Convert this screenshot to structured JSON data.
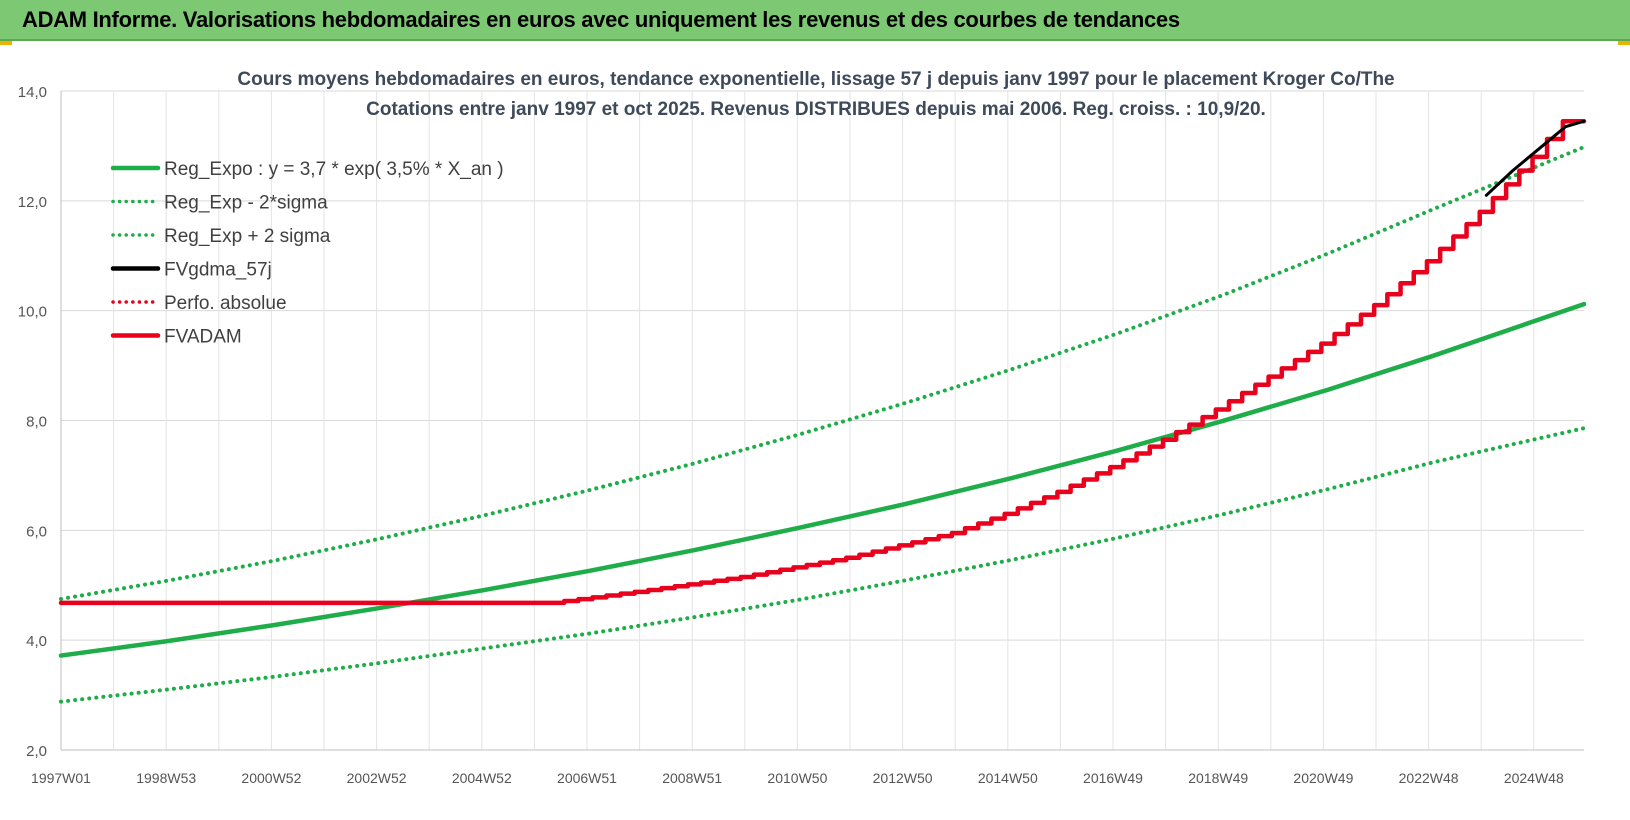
{
  "header": {
    "title": "ADAM Informe. Valorisations hebdomadaires en euros avec uniquement les revenus et des courbes de tendances"
  },
  "chart_data": {
    "type": "line",
    "title": "Cours moyens hebdomadaires en euros, tendance exponentielle, lissage 57 j depuis janv 1997 pour le placement Kroger Co/The",
    "subtitle": "Cotations entre janv 1997 et oct 2025. Revenus DISTRIBUES depuis mai 2006. Reg. croiss. : 10,9/20.",
    "xlabel": "",
    "ylabel": "",
    "ylim": [
      2.0,
      14.0
    ],
    "xlim": [
      1997.0,
      2025.85
    ],
    "y_ticks": [
      "2,0",
      "4,0",
      "6,0",
      "8,0",
      "10,0",
      "12,0",
      "14,0"
    ],
    "x_ticks": [
      "1997W01",
      "1998W53",
      "2000W52",
      "2002W52",
      "2004W52",
      "2006W51",
      "2008W51",
      "2010W50",
      "2012W50",
      "2014W50",
      "2016W49",
      "2018W49",
      "2020W49",
      "2022W48",
      "2024W48"
    ],
    "grid": true,
    "legend_position": "top-left",
    "series": [
      {
        "name": "Reg_Expo : y = 3,7 * exp( 3,5% *  X_an )",
        "style": "solid",
        "color": "#1fad4a",
        "x": [
          1997,
          1999,
          2001,
          2003,
          2005,
          2007,
          2009,
          2011,
          2013,
          2015,
          2017,
          2019,
          2021,
          2023,
          2025.85
        ],
        "y": [
          3.72,
          3.98,
          4.27,
          4.58,
          4.91,
          5.26,
          5.64,
          6.05,
          6.48,
          6.95,
          7.45,
          7.99,
          8.56,
          9.18,
          10.12
        ]
      },
      {
        "name": "Reg_Exp - 2*sigma",
        "style": "dotted",
        "color": "#1fad4a",
        "x": [
          1997,
          1999,
          2001,
          2003,
          2005,
          2007,
          2009,
          2011,
          2013,
          2015,
          2017,
          2019,
          2021,
          2023,
          2025.85
        ],
        "y": [
          2.88,
          3.1,
          3.33,
          3.58,
          3.85,
          4.12,
          4.42,
          4.74,
          5.09,
          5.46,
          5.86,
          6.29,
          6.75,
          7.24,
          7.86
        ]
      },
      {
        "name": "Reg_Exp + 2 sigma",
        "style": "dotted",
        "color": "#1fad4a",
        "x": [
          1997,
          1999,
          2001,
          2003,
          2005,
          2007,
          2009,
          2011,
          2013,
          2015,
          2017,
          2019,
          2021,
          2023,
          2025.85
        ],
        "y": [
          4.75,
          5.08,
          5.44,
          5.84,
          6.27,
          6.73,
          7.22,
          7.75,
          8.32,
          8.93,
          9.58,
          10.28,
          11.04,
          11.85,
          12.98
        ]
      },
      {
        "name": "FVgdma_57j",
        "style": "solid",
        "color": "#000000",
        "x": [
          2024.0,
          2024.5,
          2025.0,
          2025.5,
          2025.85
        ],
        "y": [
          12.1,
          12.55,
          12.95,
          13.35,
          13.45
        ]
      },
      {
        "name": "Perfo. absolue",
        "style": "dotted",
        "color": "#e8001c",
        "x": [],
        "y": []
      },
      {
        "name": "FVADAM",
        "style": "solid",
        "color": "#e8001c",
        "stepped": true,
        "x": [
          1997,
          2006.4,
          2008,
          2010,
          2012,
          2014,
          2015,
          2016,
          2017,
          2018,
          2019,
          2020,
          2021,
          2022,
          2023,
          2024,
          2025,
          2025.6,
          2025.85
        ],
        "y": [
          4.68,
          4.68,
          4.88,
          5.15,
          5.5,
          5.95,
          6.3,
          6.7,
          7.15,
          7.65,
          8.2,
          8.8,
          9.4,
          10.1,
          10.9,
          11.8,
          12.8,
          13.45,
          13.45
        ]
      }
    ]
  }
}
